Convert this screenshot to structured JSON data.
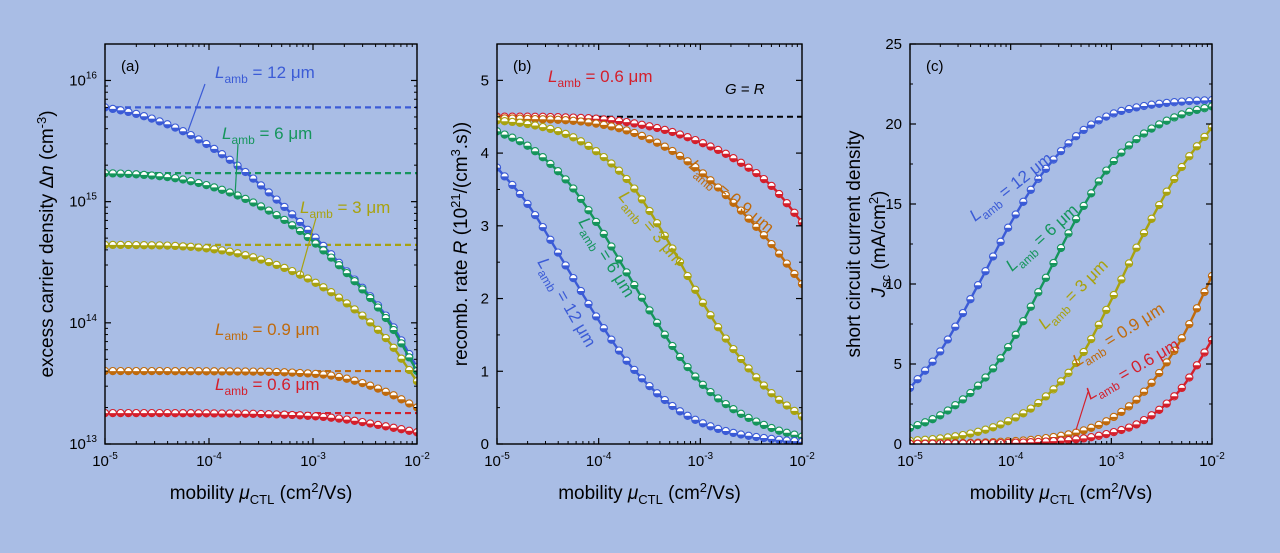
{
  "figure": {
    "background": "#a9bde5",
    "plot_background": "#a9bde5"
  },
  "chart_data": [
    {
      "panel": "(a)",
      "type": "line",
      "xlabel": "mobility μCTL (cm2/Vs)",
      "xlabel_parts": {
        "main": "mobility ",
        "sym": "μ",
        "sub": "CTL",
        "unit": " (cm",
        "sup": "2",
        "unit2": "/Vs)"
      },
      "ylabel": "excess carrier density Δn (cm-3)",
      "ylabel_parts": {
        "main": "excess carrier density Δ",
        "sym": "n",
        "unit": " (cm",
        "sup": "-3",
        "unit2": ")"
      },
      "x_scale": "log",
      "y_scale": "log",
      "xlim": [
        1e-05,
        0.01
      ],
      "ylim": [
        10000000000000.0,
        2e+16
      ],
      "xticks": [
        {
          "value": 1e-05,
          "base": "10",
          "exp": "-5"
        },
        {
          "value": 0.0001,
          "base": "10",
          "exp": "-4"
        },
        {
          "value": 0.001,
          "base": "10",
          "exp": "-3"
        },
        {
          "value": 0.01,
          "base": "10",
          "exp": "-2"
        }
      ],
      "yticks": [
        {
          "value": 10000000000000.0,
          "base": "10",
          "exp": "13"
        },
        {
          "value": 100000000000000.0,
          "base": "10",
          "exp": "14"
        },
        {
          "value": 1000000000000000.0,
          "base": "10",
          "exp": "15"
        },
        {
          "value": 1e+16,
          "base": "10",
          "exp": "16"
        }
      ],
      "grid": false,
      "series": [
        {
          "label": "Lamb = 12 μm",
          "label_parts": {
            "main": "L",
            "sub": "amb",
            "rest": " = 12 μm"
          },
          "color": "#3b5bd6",
          "x": [
            1e-05,
            2e-05,
            5e-05,
            0.0001,
            0.0002,
            0.0005,
            0.001,
            0.002,
            0.005,
            0.01
          ],
          "y": [
            6000000000000000.0,
            5300000000000000.0,
            4000000000000000.0,
            2900000000000000.0,
            1900000000000000.0,
            950000000000000.0,
            530000000000000.0,
            280000000000000.0,
            115000000000000.0,
            43000000000000.0
          ],
          "plateau": 6000000000000000.0
        },
        {
          "label": "Lamb = 6 μm",
          "label_parts": {
            "main": "L",
            "sub": "amb",
            "rest": " = 6 μm"
          },
          "color": "#15955c",
          "x": [
            1e-05,
            2e-05,
            5e-05,
            0.0001,
            0.0002,
            0.0005,
            0.001,
            0.002,
            0.005,
            0.01
          ],
          "y": [
            1720000000000000.0,
            1680000000000000.0,
            1550000000000000.0,
            1350000000000000.0,
            1100000000000000.0,
            730000000000000.0,
            470000000000000.0,
            270000000000000.0,
            110000000000000.0,
            40000000000000.0
          ],
          "plateau": 1720000000000000.0
        },
        {
          "label": "Lamb = 3 μm",
          "label_parts": {
            "main": "L",
            "sub": "amb",
            "rest": " = 3 μm"
          },
          "color": "#a8a20f",
          "x": [
            1e-05,
            2e-05,
            5e-05,
            0.0001,
            0.0002,
            0.0005,
            0.001,
            0.002,
            0.005,
            0.01
          ],
          "y": [
            440000000000000.0,
            438000000000000.0,
            430000000000000.0,
            410000000000000.0,
            370000000000000.0,
            290000000000000.0,
            220000000000000.0,
            150000000000000.0,
            75000000000000.0,
            33000000000000.0
          ],
          "plateau": 440000000000000.0
        },
        {
          "label": "Lamb = 0.9 μm",
          "label_parts": {
            "main": "L",
            "sub": "amb",
            "rest": " = 0.9 μm"
          },
          "color": "#bf6a0c",
          "x": [
            1e-05,
            0.0001,
            0.001,
            0.002,
            0.005,
            0.01
          ],
          "y": [
            40000000000000.0,
            39800000000000.0,
            38000000000000.0,
            35000000000000.0,
            27000000000000.0,
            20000000000000.0
          ],
          "plateau": 40000000000000.0
        },
        {
          "label": "Lamb = 0.6 μm",
          "label_parts": {
            "main": "L",
            "sub": "amb",
            "rest": " = 0.6 μm"
          },
          "color": "#d41f2b",
          "x": [
            1e-05,
            0.0001,
            0.001,
            0.002,
            0.005,
            0.01
          ],
          "y": [
            18000000000000.0,
            17900000000000.0,
            17000000000000.0,
            16000000000000.0,
            14000000000000.0,
            12500000000000.0
          ],
          "plateau": 18000000000000.0
        }
      ]
    },
    {
      "panel": "(b)",
      "type": "line",
      "xlabel": "mobility μCTL (cm2/Vs)",
      "xlabel_parts": {
        "main": "mobility ",
        "sym": "μ",
        "sub": "CTL",
        "unit": " (cm",
        "sup": "2",
        "unit2": "/Vs)"
      },
      "ylabel": "recomb. rate R (1021/(cm3.s))",
      "ylabel_parts": {
        "main": "recomb. rate ",
        "sym": "R",
        "unit": "  (10",
        "sup": "21",
        "unit2": "/(cm",
        "sup2": "3",
        "unit3": ".s))"
      },
      "x_scale": "log",
      "y_scale": "linear",
      "xlim": [
        1e-05,
        0.01
      ],
      "ylim": [
        0,
        5.5
      ],
      "xticks": [
        {
          "value": 1e-05,
          "base": "10",
          "exp": "-5"
        },
        {
          "value": 0.0001,
          "base": "10",
          "exp": "-4"
        },
        {
          "value": 0.001,
          "base": "10",
          "exp": "-3"
        },
        {
          "value": 0.01,
          "base": "10",
          "exp": "-2"
        }
      ],
      "yticks": [
        {
          "value": 0,
          "label": "0"
        },
        {
          "value": 1,
          "label": "1"
        },
        {
          "value": 2,
          "label": "2"
        },
        {
          "value": 3,
          "label": "3"
        },
        {
          "value": 4,
          "label": "4"
        },
        {
          "value": 5,
          "label": "5"
        }
      ],
      "grid": false,
      "annotation": {
        "text": "G = R",
        "parts": {
          "a": "G",
          "mid": " = ",
          "b": "R"
        },
        "value": 4.5
      },
      "series": [
        {
          "label": "Lamb = 0.6 μm",
          "label_parts": {
            "main": "L",
            "sub": "amb",
            "rest": " = 0.6 μm"
          },
          "color": "#d41f2b",
          "x": [
            1e-05,
            2e-05,
            5e-05,
            0.0001,
            0.0002,
            0.0005,
            0.001,
            0.002,
            0.005,
            0.01
          ],
          "y": [
            4.5,
            4.5,
            4.49,
            4.47,
            4.42,
            4.3,
            4.15,
            3.95,
            3.55,
            3.05
          ]
        },
        {
          "label": "Lamb = 0.9 μm",
          "label_parts": {
            "main": "L",
            "sub": "amb",
            "rest": " = 0.9 μm"
          },
          "color": "#bf6a0c",
          "x": [
            1e-05,
            2e-05,
            5e-05,
            0.0001,
            0.0002,
            0.0005,
            0.001,
            0.002,
            0.005,
            0.01
          ],
          "y": [
            4.48,
            4.47,
            4.45,
            4.4,
            4.3,
            4.05,
            3.75,
            3.35,
            2.75,
            2.2
          ]
        },
        {
          "label": "Lamb = 3 μm",
          "label_parts": {
            "main": "L",
            "sub": "amb",
            "rest": " = 3 μm"
          },
          "color": "#a8a20f",
          "x": [
            1e-05,
            2e-05,
            5e-05,
            0.0001,
            0.0002,
            0.0005,
            0.001,
            0.002,
            0.005,
            0.01
          ],
          "y": [
            4.45,
            4.4,
            4.25,
            4.0,
            3.6,
            2.75,
            2.0,
            1.35,
            0.7,
            0.38
          ]
        },
        {
          "label": "Lamb = 6 μm",
          "label_parts": {
            "main": "L",
            "sub": "amb",
            "rest": " = 6 μm"
          },
          "color": "#15955c",
          "x": [
            1e-05,
            2e-05,
            5e-05,
            0.0001,
            0.0002,
            0.0005,
            0.001,
            0.002,
            0.005,
            0.01
          ],
          "y": [
            4.3,
            4.1,
            3.6,
            3.0,
            2.3,
            1.4,
            0.85,
            0.5,
            0.22,
            0.1
          ]
        },
        {
          "label": "Lamb = 12 μm",
          "label_parts": {
            "main": "L",
            "sub": "amb",
            "rest": " = 12 μm"
          },
          "color": "#3b5bd6",
          "x": [
            1e-05,
            2e-05,
            5e-05,
            0.0001,
            0.0002,
            0.0005,
            0.001,
            0.002,
            0.005,
            0.01
          ],
          "y": [
            3.8,
            3.3,
            2.4,
            1.7,
            1.1,
            0.55,
            0.3,
            0.16,
            0.07,
            0.03
          ]
        }
      ]
    },
    {
      "panel": "(c)",
      "type": "line",
      "xlabel": "mobility μCTL (cm2/Vs)",
      "xlabel_parts": {
        "main": "mobility ",
        "sym": "μ",
        "sub": "CTL",
        "unit": " (cm",
        "sup": "2",
        "unit2": "/Vs)"
      },
      "ylabel": "short circuit current density Jsc (mA/cm2)",
      "ylabel_line1": "short circuit current density",
      "ylabel_parts": {
        "sym": "J",
        "sub": "sc",
        "unit": " (mA/cm",
        "sup": "2",
        "unit2": ")"
      },
      "x_scale": "log",
      "y_scale": "linear",
      "xlim": [
        1e-05,
        0.01
      ],
      "ylim": [
        0,
        25
      ],
      "xticks": [
        {
          "value": 1e-05,
          "base": "10",
          "exp": "-5"
        },
        {
          "value": 0.0001,
          "base": "10",
          "exp": "-4"
        },
        {
          "value": 0.001,
          "base": "10",
          "exp": "-3"
        },
        {
          "value": 0.01,
          "base": "10",
          "exp": "-2"
        }
      ],
      "yticks": [
        {
          "value": 0,
          "label": "0"
        },
        {
          "value": 5,
          "label": "5"
        },
        {
          "value": 10,
          "label": "10"
        },
        {
          "value": 15,
          "label": "15"
        },
        {
          "value": 20,
          "label": "20"
        },
        {
          "value": 25,
          "label": "25"
        }
      ],
      "grid": false,
      "series": [
        {
          "label": "Lamb = 12 μm",
          "label_parts": {
            "main": "L",
            "sub": "amb",
            "rest": " = 12 μm"
          },
          "color": "#3b5bd6",
          "x": [
            1e-05,
            2e-05,
            5e-05,
            0.0001,
            0.0002,
            0.0005,
            0.001,
            0.002,
            0.005,
            0.01
          ],
          "y": [
            3.5,
            5.8,
            10.2,
            13.8,
            16.8,
            19.5,
            20.6,
            21.1,
            21.4,
            21.5
          ]
        },
        {
          "label": "Lamb = 6 μm",
          "label_parts": {
            "main": "L",
            "sub": "amb",
            "rest": " = 6 μm"
          },
          "color": "#15955c",
          "x": [
            1e-05,
            2e-05,
            5e-05,
            0.0001,
            0.0002,
            0.0005,
            0.001,
            0.002,
            0.005,
            0.01
          ],
          "y": [
            1.0,
            1.8,
            3.8,
            6.3,
            9.8,
            14.6,
            17.5,
            19.3,
            20.6,
            21.1
          ]
        },
        {
          "label": "Lamb = 3 μm",
          "label_parts": {
            "main": "L",
            "sub": "amb",
            "rest": " = 3 μm"
          },
          "color": "#a8a20f",
          "x": [
            1e-05,
            2e-05,
            5e-05,
            0.0001,
            0.0002,
            0.0005,
            0.001,
            0.002,
            0.005,
            0.01
          ],
          "y": [
            0.2,
            0.35,
            0.8,
            1.5,
            2.7,
            5.5,
            9.0,
            12.9,
            17.3,
            19.8
          ]
        },
        {
          "label": "Lamb = 0.9 μm",
          "label_parts": {
            "main": "L",
            "sub": "amb",
            "rest": " = 0.9 μm"
          },
          "color": "#bf6a0c",
          "x": [
            1e-05,
            2e-05,
            5e-05,
            0.0001,
            0.0002,
            0.0005,
            0.001,
            0.002,
            0.005,
            0.01
          ],
          "y": [
            0.02,
            0.04,
            0.09,
            0.17,
            0.33,
            0.8,
            1.6,
            3.1,
            6.6,
            10.5
          ]
        },
        {
          "label": "Lamb = 0.6 μm",
          "label_parts": {
            "main": "L",
            "sub": "amb",
            "rest": " = 0.6 μm"
          },
          "color": "#d41f2b",
          "x": [
            1e-05,
            2e-05,
            5e-05,
            0.0001,
            0.0002,
            0.0005,
            0.001,
            0.002,
            0.005,
            0.01
          ],
          "y": [
            0.01,
            0.02,
            0.04,
            0.07,
            0.14,
            0.33,
            0.7,
            1.4,
            3.5,
            6.5
          ]
        }
      ]
    }
  ]
}
